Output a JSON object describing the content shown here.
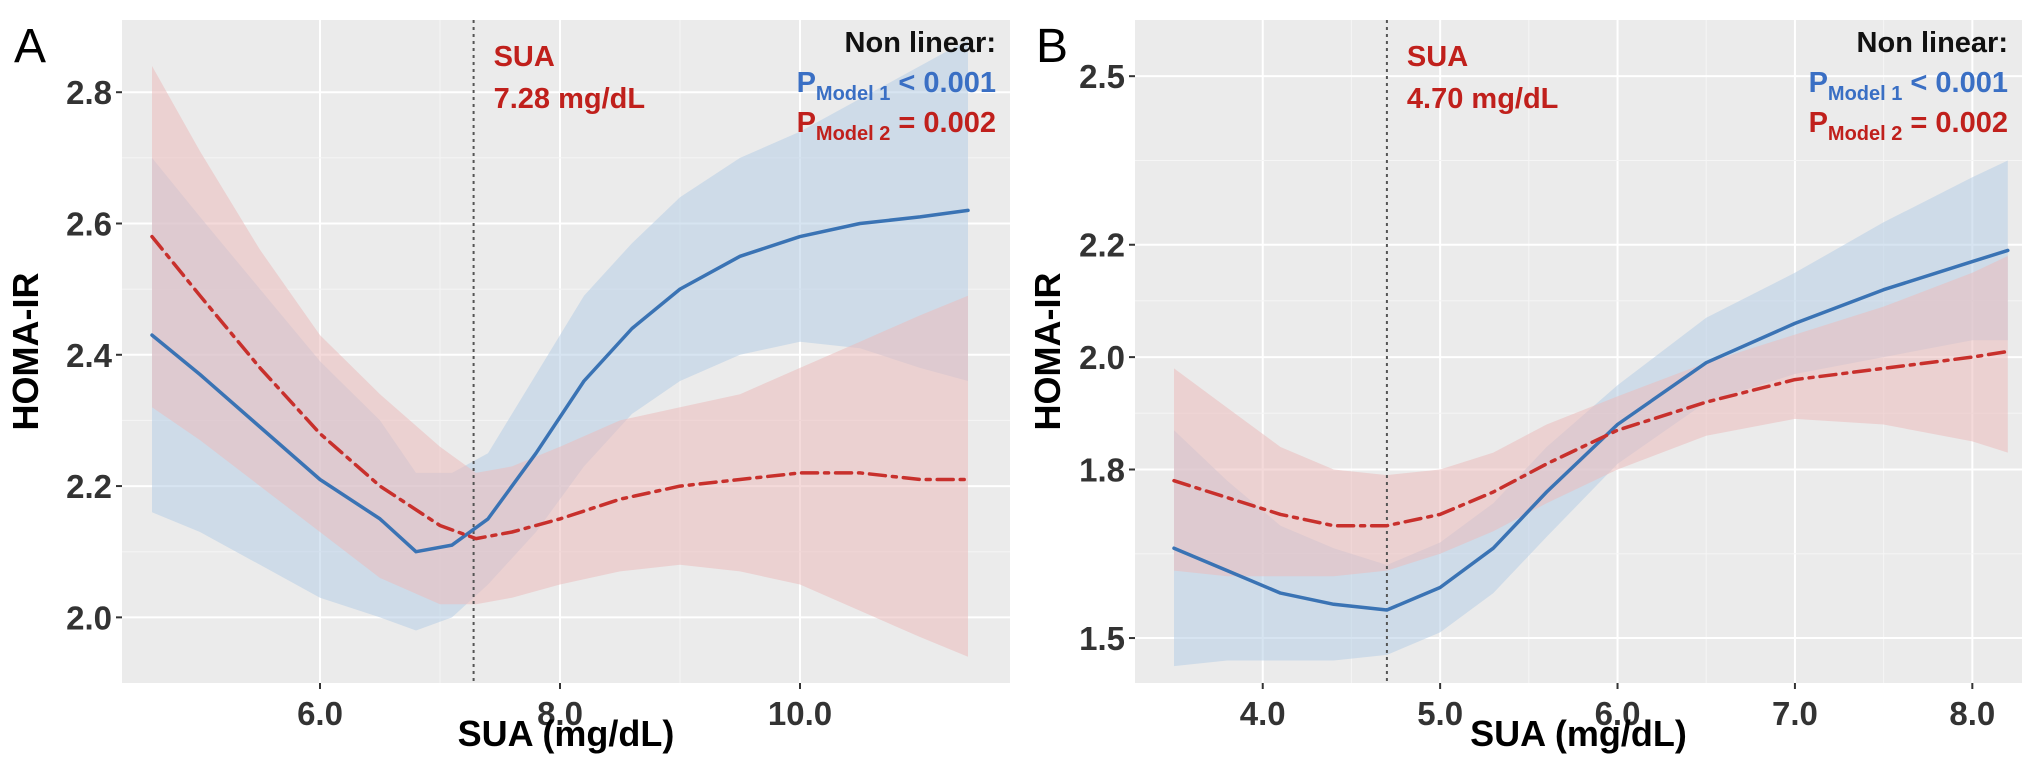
{
  "chart_data": [
    {
      "panel_label": "A",
      "type": "line",
      "xlabel": "SUA (mg/dL)",
      "ylabel": "HOMA-IR",
      "xlim": [
        4.35,
        11.75
      ],
      "ylim": [
        1.9,
        2.91
      ],
      "x_ticks": [
        6.0,
        8.0,
        10.0
      ],
      "x_tick_labels": [
        "6.0",
        "8.0",
        "10.0"
      ],
      "y_ticks": [
        2.0,
        2.2,
        2.4,
        2.6,
        2.8
      ],
      "y_tick_labels": [
        "2.0",
        "2.2",
        "2.4",
        "2.6",
        "2.8"
      ],
      "grid": true,
      "reference_line": {
        "x": 7.28,
        "label_line1": "SUA",
        "label_line2": "7.28 mg/dL"
      },
      "annotation": {
        "heading": "Non linear:",
        "model1_p": "P",
        "model1_sub": "Model 1",
        "model1_value": " < 0.001",
        "model2_p": "P",
        "model2_sub": "Model 2",
        "model2_value": " = 0.002"
      },
      "series": [
        {
          "name": "Model 1",
          "color": "#3a73b4",
          "band_color": "#b7cde6",
          "style": "solid",
          "x": [
            4.6,
            5.0,
            5.5,
            6.0,
            6.5,
            6.8,
            7.1,
            7.4,
            7.8,
            8.2,
            8.6,
            9.0,
            9.5,
            10.0,
            10.5,
            11.0,
            11.4
          ],
          "y": [
            2.43,
            2.37,
            2.29,
            2.21,
            2.15,
            2.1,
            2.11,
            2.15,
            2.25,
            2.36,
            2.44,
            2.5,
            2.55,
            2.58,
            2.6,
            2.61,
            2.62
          ],
          "lower": [
            2.16,
            2.13,
            2.08,
            2.03,
            2.0,
            1.98,
            2.0,
            2.05,
            2.13,
            2.23,
            2.31,
            2.36,
            2.4,
            2.42,
            2.41,
            2.38,
            2.36
          ],
          "upper": [
            2.7,
            2.61,
            2.5,
            2.39,
            2.3,
            2.22,
            2.22,
            2.25,
            2.37,
            2.49,
            2.57,
            2.64,
            2.7,
            2.74,
            2.79,
            2.84,
            2.88
          ]
        },
        {
          "name": "Model 2",
          "color": "#c8302c",
          "band_color": "#ebbcbc",
          "style": "dashdot",
          "x": [
            4.6,
            5.0,
            5.5,
            6.0,
            6.5,
            7.0,
            7.3,
            7.6,
            8.0,
            8.5,
            9.0,
            9.5,
            10.0,
            10.5,
            11.0,
            11.4
          ],
          "y": [
            2.58,
            2.49,
            2.38,
            2.28,
            2.2,
            2.14,
            2.12,
            2.13,
            2.15,
            2.18,
            2.2,
            2.21,
            2.22,
            2.22,
            2.21,
            2.21
          ],
          "lower": [
            2.32,
            2.27,
            2.2,
            2.13,
            2.06,
            2.02,
            2.02,
            2.03,
            2.05,
            2.07,
            2.08,
            2.07,
            2.05,
            2.01,
            1.97,
            1.94
          ],
          "upper": [
            2.84,
            2.71,
            2.56,
            2.43,
            2.34,
            2.26,
            2.22,
            2.23,
            2.26,
            2.3,
            2.32,
            2.34,
            2.38,
            2.42,
            2.46,
            2.49
          ]
        }
      ]
    },
    {
      "panel_label": "B",
      "type": "line",
      "xlabel": "SUA (mg/dL)",
      "ylabel": "HOMA-IR",
      "xlim": [
        3.28,
        8.28
      ],
      "ylim": [
        1.42,
        2.6
      ],
      "x_ticks": [
        4.0,
        5.0,
        6.0,
        7.0,
        8.0
      ],
      "x_tick_labels": [
        "4.0",
        "5.0",
        "6.0",
        "7.0",
        "8.0"
      ],
      "y_ticks": [
        1.5,
        1.8,
        2.0,
        2.2,
        2.5
      ],
      "y_tick_labels": [
        "1.5",
        "1.8",
        "2.0",
        "2.2",
        "2.5"
      ],
      "grid": true,
      "reference_line": {
        "x": 4.7,
        "label_line1": "SUA",
        "label_line2": "4.70 mg/dL"
      },
      "annotation": {
        "heading": "Non linear:",
        "model1_p": "P",
        "model1_sub": "Model 1",
        "model1_value": " < 0.001",
        "model2_p": "P",
        "model2_sub": "Model 2",
        "model2_value": " = 0.002"
      },
      "series": [
        {
          "name": "Model 1",
          "color": "#3a73b4",
          "band_color": "#b7cde6",
          "style": "solid",
          "x": [
            3.5,
            3.8,
            4.1,
            4.4,
            4.7,
            5.0,
            5.3,
            5.6,
            6.0,
            6.5,
            7.0,
            7.5,
            8.0,
            8.2
          ],
          "y": [
            1.66,
            1.62,
            1.58,
            1.56,
            1.55,
            1.59,
            1.66,
            1.76,
            1.88,
            1.99,
            2.06,
            2.12,
            2.17,
            2.19
          ],
          "lower": [
            1.45,
            1.46,
            1.46,
            1.46,
            1.47,
            1.51,
            1.58,
            1.68,
            1.81,
            1.92,
            1.97,
            2.0,
            2.03,
            2.03
          ],
          "upper": [
            1.87,
            1.78,
            1.7,
            1.66,
            1.63,
            1.67,
            1.74,
            1.84,
            1.95,
            2.07,
            2.15,
            2.24,
            2.32,
            2.35
          ]
        },
        {
          "name": "Model 2",
          "color": "#c8302c",
          "band_color": "#ebbcbc",
          "style": "dashdot",
          "x": [
            3.5,
            3.8,
            4.1,
            4.4,
            4.7,
            5.0,
            5.3,
            5.6,
            6.0,
            6.5,
            7.0,
            7.5,
            8.0,
            8.2
          ],
          "y": [
            1.78,
            1.75,
            1.72,
            1.7,
            1.7,
            1.72,
            1.76,
            1.81,
            1.87,
            1.92,
            1.96,
            1.98,
            2.0,
            2.01
          ],
          "lower": [
            1.62,
            1.61,
            1.61,
            1.61,
            1.62,
            1.65,
            1.69,
            1.74,
            1.8,
            1.86,
            1.89,
            1.88,
            1.85,
            1.83
          ],
          "upper": [
            1.98,
            1.91,
            1.84,
            1.8,
            1.79,
            1.8,
            1.83,
            1.88,
            1.93,
            1.99,
            2.04,
            2.09,
            2.15,
            2.18
          ]
        }
      ]
    }
  ]
}
